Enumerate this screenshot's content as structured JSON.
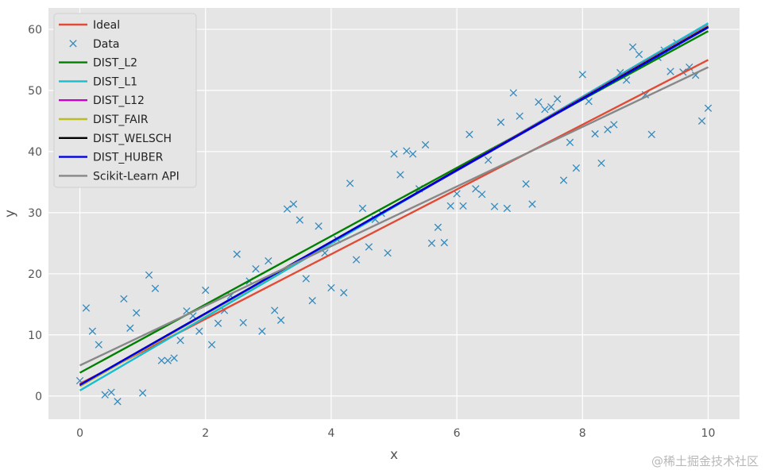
{
  "chart_data": {
    "type": "line",
    "title": "",
    "xlabel": "x",
    "ylabel": "y",
    "xlim": [
      -0.5,
      10.5
    ],
    "ylim": [
      -3.8,
      63.5
    ],
    "xticks": [
      0,
      2,
      4,
      6,
      8,
      10
    ],
    "yticks": [
      0,
      10,
      20,
      30,
      40,
      50,
      60
    ],
    "grid": true,
    "legend_position": "top-left",
    "series": [
      {
        "name": "Ideal",
        "kind": "line",
        "color": "#e24a33",
        "x": [
          0,
          10
        ],
        "y": [
          2.0,
          55.0
        ]
      },
      {
        "name": "Data",
        "kind": "scatter",
        "marker": "x",
        "color": "#348abd",
        "x": [
          0.0,
          0.1,
          0.2,
          0.3,
          0.4,
          0.5,
          0.6,
          0.7,
          0.8,
          0.9,
          1.0,
          1.1,
          1.2,
          1.3,
          1.4,
          1.5,
          1.6,
          1.7,
          1.8,
          1.9,
          2.0,
          2.1,
          2.2,
          2.3,
          2.4,
          2.5,
          2.6,
          2.7,
          2.8,
          2.9,
          3.0,
          3.1,
          3.2,
          3.3,
          3.4,
          3.5,
          3.6,
          3.7,
          3.8,
          3.9,
          4.0,
          4.1,
          4.2,
          4.3,
          4.4,
          4.5,
          4.6,
          4.7,
          4.8,
          4.9,
          5.0,
          5.1,
          5.2,
          5.3,
          5.4,
          5.5,
          5.6,
          5.7,
          5.8,
          5.9,
          6.0,
          6.1,
          6.2,
          6.3,
          6.4,
          6.5,
          6.6,
          6.7,
          6.8,
          6.9,
          7.0,
          7.1,
          7.2,
          7.3,
          7.4,
          7.5,
          7.6,
          7.7,
          7.8,
          7.9,
          8.0,
          8.1,
          8.2,
          8.3,
          8.4,
          8.5,
          8.6,
          8.7,
          8.8,
          8.9,
          9.0,
          9.1,
          9.2,
          9.3,
          9.4,
          9.5,
          9.6,
          9.7,
          9.8,
          9.9,
          10.0
        ],
        "y": [
          2.5,
          14.4,
          10.6,
          8.4,
          0.2,
          0.6,
          -0.9,
          15.9,
          11.1,
          13.6,
          0.5,
          19.8,
          17.6,
          5.8,
          5.8,
          6.2,
          9.1,
          13.9,
          13.1,
          10.6,
          17.3,
          8.4,
          11.9,
          14.0,
          16.4,
          23.2,
          12.0,
          18.8,
          20.8,
          10.6,
          22.1,
          14.0,
          12.4,
          30.6,
          31.4,
          28.8,
          19.2,
          15.6,
          27.8,
          23.4,
          17.7,
          25.6,
          16.9,
          34.8,
          22.3,
          30.7,
          24.4,
          28.9,
          29.9,
          23.4,
          39.6,
          36.2,
          40.1,
          39.6,
          33.9,
          41.1,
          25.0,
          27.6,
          25.1,
          31.1,
          33.1,
          31.1,
          42.8,
          33.9,
          33.0,
          38.6,
          31.0,
          44.8,
          30.7,
          49.6,
          45.8,
          34.7,
          31.4,
          48.1,
          46.9,
          47.3,
          48.6,
          35.3,
          41.5,
          37.3,
          52.6,
          48.2,
          42.9,
          38.1,
          43.6,
          44.4,
          52.9,
          51.7,
          57.1,
          55.9,
          49.3,
          42.8,
          55.4,
          56.6,
          53.1,
          57.8,
          53.0,
          53.8,
          52.5,
          45.0,
          47.1
        ]
      },
      {
        "name": "DIST_L2",
        "kind": "line",
        "color": "#008000",
        "x": [
          0,
          10
        ],
        "y": [
          3.8,
          59.7
        ]
      },
      {
        "name": "DIST_L1",
        "kind": "line",
        "color": "#17becf",
        "x": [
          0,
          10
        ],
        "y": [
          0.9,
          61.0
        ]
      },
      {
        "name": "DIST_L12",
        "kind": "line",
        "color": "#cc00cc",
        "x": [
          0,
          10
        ],
        "y": [
          1.6,
          60.6
        ]
      },
      {
        "name": "DIST_FAIR",
        "kind": "line",
        "color": "#bcbd22",
        "x": [
          0,
          10
        ],
        "y": [
          1.6,
          60.5
        ]
      },
      {
        "name": "DIST_WELSCH",
        "kind": "line",
        "color": "#000000",
        "x": [
          0,
          10
        ],
        "y": [
          1.8,
          60.4
        ]
      },
      {
        "name": "DIST_HUBER",
        "kind": "line",
        "color": "#0000ee",
        "x": [
          0,
          10
        ],
        "y": [
          1.8,
          60.3
        ]
      },
      {
        "name": "Scikit-Learn API",
        "kind": "line",
        "color": "#888888",
        "x": [
          0,
          10
        ],
        "y": [
          5.0,
          53.8
        ]
      }
    ]
  },
  "watermark": "@稀土掘金技术社区"
}
